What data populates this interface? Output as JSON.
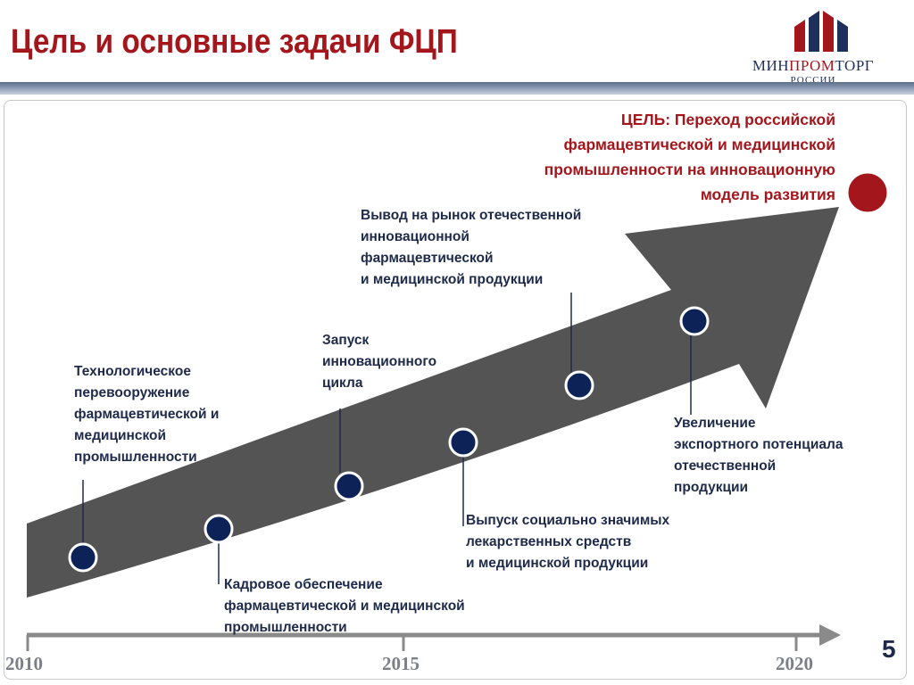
{
  "slide": {
    "title": "Цель и основные задачи ФЦП",
    "page_number": "5"
  },
  "logo": {
    "name_part1": "МИН",
    "name_part2": "ПРОМ",
    "name_part3": "ТОРГ",
    "subtitle": "РОССИИ"
  },
  "goal": {
    "lines": [
      "ЦЕЛЬ: Переход российской",
      "фармацевтической и медицинской",
      "промышленности на инновационную",
      "модель развития"
    ]
  },
  "milestones": [
    {
      "lines": [
        "Технологическое",
        "перевооружение",
        "фармацевтической и",
        "медицинской",
        "промышленности"
      ]
    },
    {
      "lines": [
        "Кадровое  обеспечение",
        "фармацевтической и медицинской",
        "промышленности"
      ]
    },
    {
      "lines": [
        "Запуск",
        "инновационного",
        "цикла"
      ]
    },
    {
      "lines": [
        "Выпуск социально значимых",
        "лекарственных  средств",
        "и медицинской продукции"
      ]
    },
    {
      "lines": [
        "Вывод на рынок отечественной",
        "инновационной",
        "фармацевтической",
        "и медицинской продукции"
      ]
    },
    {
      "lines": [
        "Увеличение",
        "экспортного потенциала",
        "отечественной",
        "продукции"
      ]
    }
  ],
  "timeline": {
    "years": [
      "2010",
      "2015",
      "2020"
    ]
  },
  "colors": {
    "title": "#a3161c",
    "arrow": "#545454",
    "node": "#0d2358",
    "goal_node": "#a3161c",
    "text": "#1e2a4a"
  }
}
